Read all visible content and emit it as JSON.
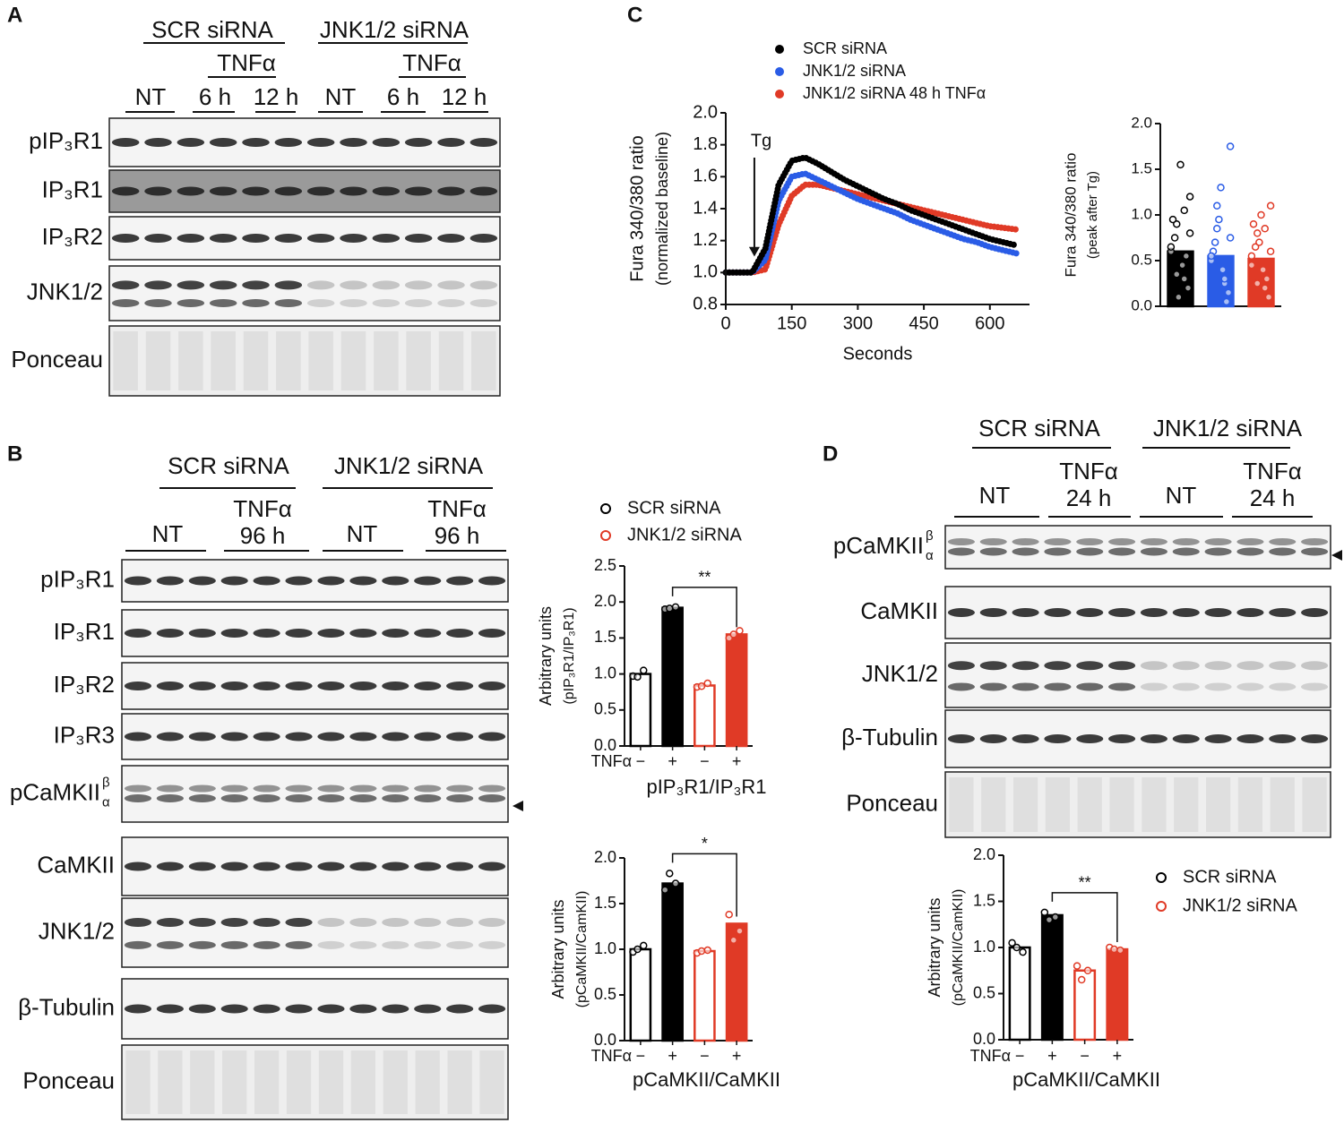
{
  "panel_labels": [
    "A",
    "B",
    "C",
    "D"
  ],
  "blots": [
    {
      "groups": [
        "SCR siRNA",
        "JNK1/2 siRNA"
      ],
      "treatments": [
        "TNFα",
        "TNFα"
      ],
      "lanes": [
        [
          "NT"
        ],
        [
          "6 h"
        ],
        [
          "12 h"
        ],
        [
          "NT"
        ],
        [
          "6 h"
        ],
        [
          "12 h"
        ]
      ],
      "rows": [
        "pIP₃R1",
        "IP₃R1",
        "IP₃R2",
        "JNK1/2",
        "Ponceau"
      ]
    },
    {
      "groups": [
        "SCR siRNA",
        "JNK1/2 siRNA"
      ],
      "lanes": [
        [
          "NT"
        ],
        [
          "TNFα",
          "96 h"
        ],
        [
          "NT"
        ],
        [
          "TNFα",
          "96 h"
        ]
      ],
      "rows": [
        "pIP₃R1",
        "IP₃R1",
        "IP₃R2",
        "IP₃R3",
        {
          "text": "pCaMKII",
          "sup": "β",
          "sub": "α"
        },
        "CaMKII",
        "JNK1/2",
        "β-Tubulin",
        "Ponceau"
      ]
    },
    {
      "groups": [
        "SCR siRNA",
        "JNK1/2 siRNA"
      ],
      "lanes": [
        [
          "NT"
        ],
        [
          "TNFα",
          "24 h"
        ],
        [
          "NT"
        ],
        [
          "TNFα",
          "24 h"
        ]
      ],
      "rows": [
        {
          "text": "pCaMKII",
          "sup": "β",
          "sub": "α"
        },
        "CaMKII",
        "JNK1/2",
        "β-Tubulin",
        "Ponceau"
      ]
    }
  ],
  "chart_data": [
    {
      "type": "line",
      "xlabel": "Seconds",
      "ylabel": [
        "Fura 340/380 ratio",
        "(normalized baseline)"
      ],
      "x": [
        0,
        30,
        60,
        90,
        120,
        150,
        180,
        210,
        240,
        270,
        300,
        330,
        360,
        390,
        420,
        450,
        480,
        510,
        540,
        570,
        600,
        630,
        660
      ],
      "series": [
        {
          "name": "SCR siRNA",
          "color": "#000000",
          "values": [
            1.0,
            1.0,
            1.0,
            1.15,
            1.55,
            1.7,
            1.72,
            1.68,
            1.63,
            1.58,
            1.54,
            1.5,
            1.46,
            1.43,
            1.39,
            1.36,
            1.33,
            1.3,
            1.27,
            1.24,
            1.21,
            1.19,
            1.17
          ]
        },
        {
          "name": "JNK1/2 siRNA",
          "color": "#2a5ce6",
          "values": [
            1.0,
            1.0,
            1.0,
            1.08,
            1.45,
            1.6,
            1.62,
            1.58,
            1.54,
            1.5,
            1.46,
            1.43,
            1.4,
            1.37,
            1.33,
            1.3,
            1.27,
            1.24,
            1.21,
            1.19,
            1.16,
            1.14,
            1.12
          ]
        },
        {
          "name": "JNK1/2 siRNA  48 h TNFα",
          "color": "#e03a26",
          "values": [
            1.0,
            1.0,
            1.0,
            1.02,
            1.3,
            1.48,
            1.55,
            1.55,
            1.53,
            1.51,
            1.49,
            1.47,
            1.45,
            1.43,
            1.41,
            1.39,
            1.37,
            1.35,
            1.33,
            1.31,
            1.29,
            1.28,
            1.27
          ]
        }
      ],
      "annotation": {
        "text": "Tg",
        "x": 65
      },
      "xlim": [
        0,
        690
      ],
      "xticks": [
        0,
        150,
        300,
        450,
        600
      ],
      "ylim": [
        0.8,
        2.0
      ],
      "yticks": [
        0.8,
        {
          "value": 1,
          "label": "1.0"
        },
        1.2,
        1.4,
        1.6,
        1.8,
        {
          "value": 2,
          "label": "2.0"
        }
      ]
    },
    {
      "type": "bar",
      "ylabel": [
        "Fura 340/380 ratio",
        "(peak after Tg)"
      ],
      "categories": [
        null,
        null,
        null
      ],
      "values": [
        0.6,
        0.55,
        0.52
      ],
      "colors": [
        "#000000",
        "#2a5ce6",
        "#e03a26"
      ],
      "filled": [
        true,
        true,
        true
      ],
      "points": [
        [
          0.6,
          0.3,
          0.9,
          1.2,
          0.45,
          0.75,
          0.2,
          1.55,
          0.95,
          0.55,
          0.1,
          0.65,
          1.05,
          0.35,
          0.8
        ],
        [
          0.5,
          0.25,
          0.85,
          1.75,
          0.4,
          0.7,
          0.15,
          1.3,
          0.6,
          0.05,
          0.95,
          0.55,
          0.3,
          1.1,
          0.75
        ],
        [
          0.55,
          0.2,
          0.8,
          1.1,
          0.4,
          0.65,
          0.1,
          1.0,
          0.9,
          0.3,
          0.7,
          0.45,
          0.85,
          0.25,
          0.6
        ]
      ],
      "ylim": [
        0,
        2.0
      ],
      "yticks": [
        {
          "value": 0,
          "label": "0.0"
        },
        0.5,
        {
          "value": 1,
          "label": "1.0"
        },
        1.5,
        {
          "value": 2,
          "label": "2.0"
        }
      ]
    },
    {
      "type": "bar",
      "xlabel": "pIP₃R1/IP₃R1",
      "ylabel": [
        "Arbitrary units",
        "(pIP₃R1/IP₃R1)"
      ],
      "x_row_label": "TNFα",
      "categories": [
        "−",
        "+",
        "−",
        "+"
      ],
      "values": [
        1.0,
        1.92,
        0.84,
        1.55
      ],
      "colors": [
        "#000000",
        "#000000",
        "#e03a26",
        "#e03a26"
      ],
      "filled": [
        false,
        true,
        false,
        true
      ],
      "points": [
        [
          0.97,
          1.05,
          0.96
        ],
        [
          1.9,
          1.93,
          1.91
        ],
        [
          0.82,
          0.87,
          0.83
        ],
        [
          1.5,
          1.6,
          1.55
        ]
      ],
      "significance": {
        "text": "**",
        "from": 1,
        "to": 3
      },
      "legend": [
        {
          "name": "SCR siRNA",
          "color": "#000000"
        },
        {
          "name": "JNK1/2 siRNA",
          "color": "#e03a26"
        }
      ],
      "ylim": [
        0,
        2.5
      ],
      "yticks": [
        {
          "value": 0,
          "label": "0.0"
        },
        0.5,
        {
          "value": 1,
          "label": "1.0"
        },
        1.5,
        {
          "value": 2,
          "label": "2.0"
        },
        2.5
      ]
    },
    {
      "type": "bar",
      "xlabel": "pCaMKII/CaMKII",
      "ylabel": [
        "Arbitrary units",
        "(pCaMKII/CamKII)"
      ],
      "x_row_label": "TNFα",
      "categories": [
        "−",
        "+",
        "−",
        "+"
      ],
      "values": [
        1.0,
        1.72,
        0.98,
        1.28
      ],
      "colors": [
        "#000000",
        "#000000",
        "#e03a26",
        "#e03a26"
      ],
      "filled": [
        false,
        true,
        false,
        true
      ],
      "points": [
        [
          0.97,
          1.04,
          1.0
        ],
        [
          1.65,
          1.72,
          1.83
        ],
        [
          0.96,
          0.99,
          0.98
        ],
        [
          1.38,
          1.2,
          1.1
        ]
      ],
      "significance": {
        "text": "*",
        "from": 1,
        "to": 3
      },
      "ylim": [
        0,
        2.0
      ],
      "yticks": [
        {
          "value": 0,
          "label": "0.0"
        },
        0.5,
        {
          "value": 1,
          "label": "1.0"
        },
        1.5,
        {
          "value": 2,
          "label": "2.0"
        }
      ]
    },
    {
      "type": "bar",
      "xlabel": "pCaMKII/CaMKII",
      "ylabel": [
        "Arbitrary units",
        "(pCaMKII/CamKII)"
      ],
      "x_row_label": "TNFα",
      "categories": [
        "−",
        "+",
        "−",
        "+"
      ],
      "values": [
        1.0,
        1.35,
        0.75,
        0.98
      ],
      "colors": [
        "#000000",
        "#000000",
        "#e03a26",
        "#e03a26"
      ],
      "filled": [
        false,
        true,
        false,
        true
      ],
      "points": [
        [
          1.05,
          0.95,
          1.0
        ],
        [
          1.38,
          1.33,
          1.3
        ],
        [
          0.8,
          0.75,
          0.65
        ],
        [
          1.0,
          0.97,
          0.98
        ]
      ],
      "significance": {
        "text": "**",
        "from": 1,
        "to": 3
      },
      "legend": [
        {
          "name": "SCR siRNA",
          "color": "#000000"
        },
        {
          "name": "JNK1/2 siRNA",
          "color": "#e03a26"
        }
      ],
      "ylim": [
        0,
        2.0
      ],
      "yticks": [
        {
          "value": 0,
          "label": "0.0"
        },
        0.5,
        {
          "value": 1,
          "label": "1.0"
        },
        1.5,
        {
          "value": 2,
          "label": "2.0"
        }
      ]
    }
  ]
}
